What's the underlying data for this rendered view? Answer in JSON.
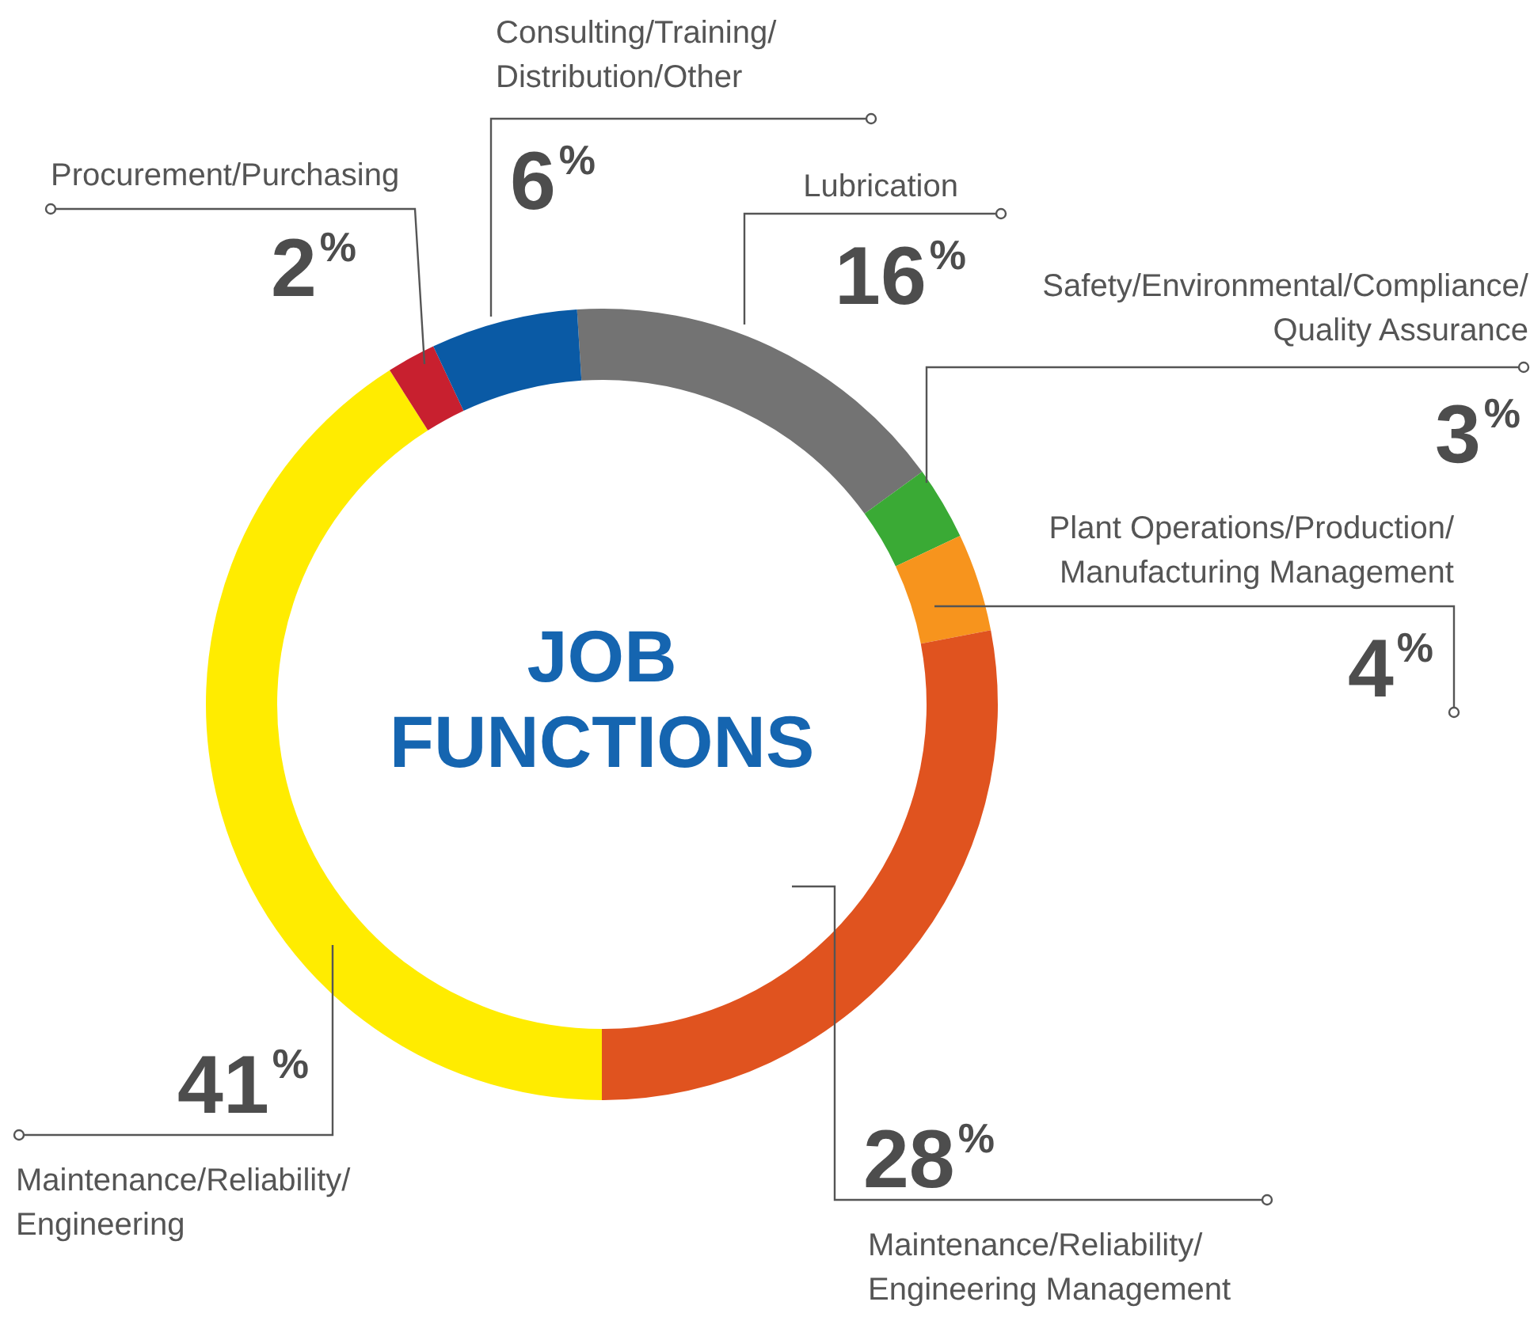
{
  "chart_data": {
    "type": "donut",
    "title": "JOB FUNCTIONS",
    "categories": [
      "Lubrication",
      "Safety/Environmental/Compliance/Quality Assurance",
      "Plant Operations/Production/Manufacturing Management",
      "Maintenance/Reliability/Engineering Management",
      "Maintenance/Reliability/Engineering",
      "Procurement/Purchasing",
      "Consulting/Training/Distribution/Other"
    ],
    "values": [
      16,
      3,
      4,
      28,
      41,
      2,
      6
    ],
    "value_labels": [
      "16%",
      "3%",
      "4%",
      "28%",
      "41%",
      "2%",
      "6%"
    ],
    "colors": [
      "#737373",
      "#3aaa35",
      "#f7941d",
      "#e0531f",
      "#ffec00",
      "#c8202f",
      "#0a5aa5"
    ],
    "legend": false
  }
}
